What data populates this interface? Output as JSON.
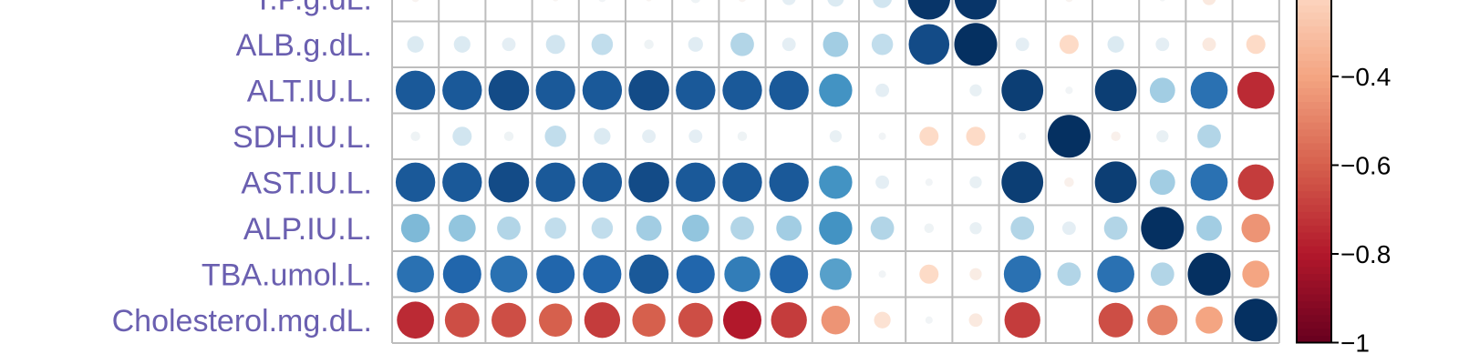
{
  "chart_data": {
    "type": "heatmap",
    "subtype": "correlation-circle-plot",
    "rows": [
      "T.P.g.dL.",
      "ALB.g.dL.",
      "ALT.IU.L.",
      "SDH.IU.L.",
      "AST.IU.L.",
      "ALP.IU.L.",
      "TBA.umol.L.",
      "Cholesterol.mg.dL."
    ],
    "n_columns": 19,
    "values": [
      [
        -0.03,
        0.0,
        0.0,
        -0.02,
        0.03,
        -0.02,
        0.05,
        -0.03,
        0.1,
        0.15,
        0.2,
        0.98,
        0.98,
        0.0,
        -0.03,
        0.0,
        0.02,
        -0.1,
        0.0
      ],
      [
        0.15,
        0.15,
        0.1,
        0.2,
        0.25,
        0.05,
        0.12,
        0.3,
        0.1,
        0.35,
        0.25,
        0.9,
        1.0,
        0.1,
        -0.2,
        0.15,
        0.1,
        -0.1,
        -0.2
      ],
      [
        0.85,
        0.85,
        0.9,
        0.85,
        0.85,
        0.9,
        0.85,
        0.85,
        0.85,
        0.6,
        0.1,
        0.0,
        0.08,
        0.95,
        0.03,
        0.95,
        0.35,
        0.75,
        -0.75
      ],
      [
        0.05,
        0.2,
        0.05,
        0.25,
        0.15,
        0.1,
        0.1,
        0.05,
        0.0,
        0.08,
        0.03,
        -0.2,
        -0.2,
        0.03,
        1.0,
        -0.05,
        0.08,
        0.3,
        0.0
      ],
      [
        0.85,
        0.85,
        0.9,
        0.85,
        0.85,
        0.9,
        0.85,
        0.85,
        0.85,
        0.6,
        0.1,
        0.03,
        0.08,
        0.95,
        -0.05,
        0.95,
        0.35,
        0.75,
        -0.7
      ],
      [
        0.45,
        0.4,
        0.3,
        0.25,
        0.25,
        0.35,
        0.4,
        0.3,
        0.35,
        0.6,
        0.3,
        0.05,
        0.08,
        0.3,
        0.1,
        0.3,
        1.0,
        0.35,
        -0.45
      ],
      [
        0.75,
        0.8,
        0.75,
        0.8,
        0.8,
        0.85,
        0.8,
        0.7,
        0.8,
        0.55,
        0.03,
        -0.2,
        -0.08,
        0.75,
        0.3,
        0.75,
        0.3,
        1.0,
        -0.4
      ],
      [
        -0.75,
        -0.65,
        -0.65,
        -0.6,
        -0.7,
        -0.6,
        -0.65,
        -0.8,
        -0.7,
        -0.45,
        -0.15,
        0.03,
        -0.1,
        -0.7,
        0.0,
        -0.65,
        -0.5,
        -0.4,
        1.0
      ]
    ],
    "colorbar": {
      "range": [
        -1,
        1
      ],
      "visible_tick_labels": [
        "−0.4",
        "−0.6",
        "−0.8",
        "−1"
      ]
    }
  }
}
